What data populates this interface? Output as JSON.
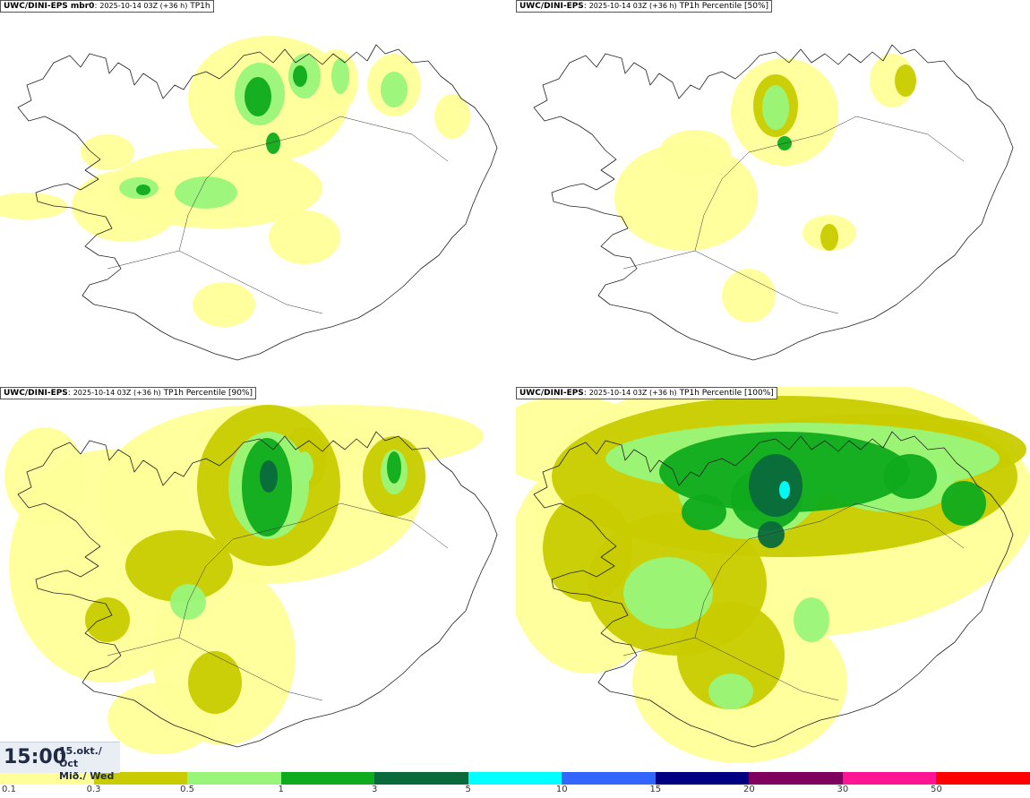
{
  "panels": [
    {
      "model": "UWC/DINI-EPS mbr0",
      "date": "2025-10-14 03Z (+36 h)",
      "var": "TP1h",
      "level": 0
    },
    {
      "model": "UWC/DINI-EPS",
      "date": "2025-10-14 03Z (+36 h)",
      "var": "TP1h Percentile [50%]",
      "level": 1
    },
    {
      "model": "UWC/DINI-EPS",
      "date": "2025-10-14 03Z (+36 h)",
      "var": "TP1h Percentile [90%]",
      "level": 2
    },
    {
      "model": "UWC/DINI-EPS",
      "date": "2025-10-14 03Z (+36 h)",
      "var": "TP1h Percentile [100%]",
      "level": 3
    }
  ],
  "time": {
    "hour": "15:00",
    "date_line1": "15.okt./ Oct",
    "date_line2": "Mið./ Wed"
  },
  "legend": {
    "colors": [
      "#ffff99",
      "#c8cc00",
      "#99f57a",
      "#0fab1e",
      "#0a6a3c",
      "#00ffff",
      "#3366ff",
      "#000080",
      "#800060",
      "#ff1493",
      "#ff0000"
    ],
    "ticks": [
      "0.1",
      "0.3",
      "0.5",
      "1",
      "3",
      "5",
      "10",
      "15",
      "20",
      "30",
      "50"
    ]
  }
}
